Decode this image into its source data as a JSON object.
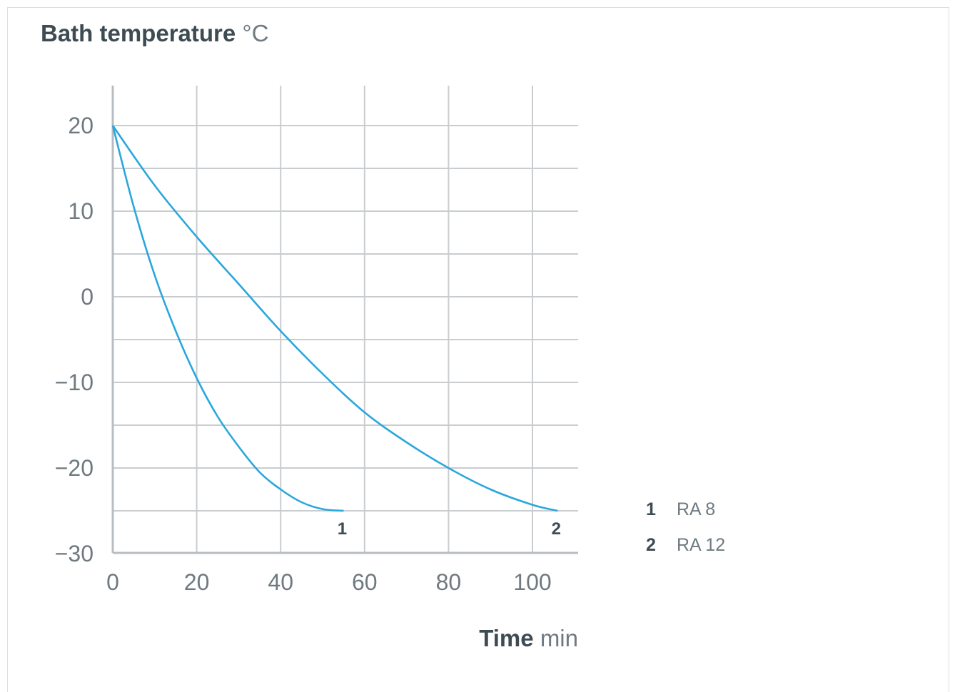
{
  "chart_data": {
    "type": "line",
    "ylabel": {
      "name": "Bath temperature",
      "unit": "°C"
    },
    "xlabel": {
      "name": "Time",
      "unit": "min"
    },
    "xlim": [
      0,
      110
    ],
    "ylim": [
      -30,
      25
    ],
    "x_ticks": [
      0,
      20,
      40,
      60,
      80,
      100
    ],
    "y_ticks": [
      20,
      10,
      0,
      -10,
      -20,
      -30
    ],
    "grid": true,
    "line_color": "#2aa7dc",
    "series": [
      {
        "label": "1",
        "name": "RA 8",
        "x": [
          0,
          5,
          10,
          15,
          20,
          25,
          30,
          35,
          40,
          45,
          50,
          55
        ],
        "y": [
          20,
          10.5,
          2.5,
          -4,
          -9.5,
          -14,
          -17.5,
          -20.5,
          -22.5,
          -24,
          -24.8,
          -25
        ]
      },
      {
        "label": "2",
        "name": "RA 12",
        "x": [
          0,
          10,
          20,
          30,
          40,
          50,
          60,
          70,
          80,
          90,
          100,
          106
        ],
        "y": [
          20,
          13,
          7,
          1.5,
          -4,
          -9,
          -13.5,
          -17,
          -20,
          -22.5,
          -24.3,
          -25
        ]
      }
    ],
    "legend_position": "right"
  }
}
